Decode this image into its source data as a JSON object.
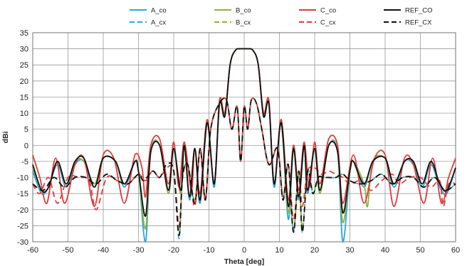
{
  "chart_data": {
    "type": "line",
    "xlabel": "Theta [deg]",
    "ylabel": "dBi",
    "xlim": [
      -60,
      60
    ],
    "ylim": [
      -30,
      35
    ],
    "x_ticks": [
      "-60",
      "-50",
      "-40",
      "-30",
      "-20",
      "-10",
      "0",
      "10",
      "20",
      "30",
      "40",
      "50",
      "60"
    ],
    "y_ticks": [
      "35",
      "30",
      "25",
      "20",
      "15",
      "10",
      "5",
      "0",
      "-5",
      "-10",
      "-15",
      "-20",
      "-25",
      "-30"
    ],
    "grid": true,
    "legend_position": "top",
    "series": [
      {
        "name": "A_co",
        "color": "#2aa8dc",
        "dash": "solid",
        "x": [
          -60,
          -57.5,
          -55.5,
          -53,
          -50.5,
          -48,
          -45.5,
          -42.5,
          -40,
          -36.5,
          -34,
          -31,
          -30,
          -28,
          -26.5,
          -24,
          -21.5,
          -20,
          -18,
          -17,
          -15.5,
          -14,
          -12.5,
          -10.5,
          -8.5,
          -7,
          -5.5,
          -4,
          -2.5,
          -1,
          0,
          1,
          2.5,
          4,
          5.5,
          7,
          8.5,
          10.5,
          12.5,
          14,
          15.5,
          17,
          18,
          20,
          21.5,
          24,
          26.5,
          28,
          30,
          31,
          34,
          36.5,
          40,
          42.5,
          45.5,
          48,
          50.5,
          53,
          55.5,
          57.5,
          60
        ],
        "y": [
          -8,
          -15,
          -13,
          -6,
          -13,
          -6,
          -5,
          -13,
          -4,
          -5,
          -13,
          -5,
          -8,
          -30,
          -2,
          0,
          -14,
          -1,
          -15,
          0,
          -17,
          -1,
          -18,
          7,
          -13,
          13,
          9,
          25,
          29.5,
          30,
          30,
          30,
          29.5,
          25,
          9,
          13,
          -13,
          7,
          -23,
          -1,
          -17,
          0,
          -15,
          -1,
          -14,
          0,
          -2,
          -30,
          -8,
          -5,
          -13,
          -5,
          -4,
          -13,
          -5,
          -6,
          -13,
          -6,
          -13,
          -15,
          -7
        ]
      },
      {
        "name": "A_cx",
        "color": "#2aa8dc",
        "dash": "8,5",
        "x": [
          -60,
          -57,
          -54,
          -51,
          -48,
          -45,
          -42,
          -39,
          -36,
          -33,
          -30,
          -28.5,
          -26,
          -24,
          -22,
          -20,
          -18.5,
          -17.5,
          -16,
          -14,
          -12.5,
          -11,
          -9.5,
          -7,
          -5,
          -3.5,
          -2,
          -1,
          0,
          1,
          2,
          3.5,
          5,
          7,
          9.5,
          11,
          12.5,
          14,
          15.5,
          16.5,
          18,
          19.5,
          21,
          22.5,
          24,
          26,
          28,
          30,
          33,
          36,
          39,
          42,
          45,
          48,
          51,
          54,
          57,
          60
        ],
        "y": [
          -12,
          -14,
          -10,
          -13,
          -10,
          -10,
          -12,
          -9,
          -11,
          -12,
          -9,
          -11,
          -8,
          -10,
          -6,
          -8,
          -29,
          -10,
          -6,
          -18,
          -1,
          -17,
          5,
          13,
          14,
          5,
          12,
          -5,
          12,
          5,
          14,
          13,
          5,
          -6,
          -1,
          -17,
          -6,
          -27,
          -8,
          -27,
          -8,
          -15,
          -10,
          -10,
          -10,
          -10,
          -9,
          -11,
          -12,
          -11,
          -9,
          -12,
          -10,
          -10,
          -13,
          -10,
          -14,
          -12
        ]
      },
      {
        "name": "B_co",
        "color": "#8db43e",
        "dash": "solid",
        "x": [
          -60,
          -57.5,
          -55.5,
          -53,
          -50.5,
          -48,
          -45.5,
          -42.5,
          -40,
          -36.5,
          -34,
          -31,
          -30,
          -28,
          -26.5,
          -24,
          -21.5,
          -20,
          -18,
          -17,
          -15.5,
          -14,
          -12.5,
          -10.5,
          -8.5,
          -7,
          -5.5,
          -4,
          -2.5,
          -1,
          0,
          1,
          2.5,
          4,
          5.5,
          7,
          8.5,
          10.5,
          12.5,
          14,
          15.5,
          17,
          18,
          20,
          21.5,
          24,
          26.5,
          28,
          30,
          31,
          34,
          35,
          36.5,
          40,
          42.5,
          45.5,
          48,
          50.5,
          53,
          55.5,
          57.5,
          60
        ],
        "y": [
          -7,
          -14,
          -13,
          -5,
          -12,
          -5,
          -5,
          -12,
          -4,
          -5,
          -12,
          -5,
          -8,
          -26,
          -2,
          0,
          -15,
          -1,
          -15,
          0,
          -16,
          -1,
          -17,
          7,
          -12,
          13,
          9,
          25,
          29.5,
          30,
          30,
          30,
          29.5,
          25,
          9,
          13,
          -12,
          7,
          -21,
          -1,
          -16,
          0,
          -14,
          -1,
          -15,
          0,
          -2,
          -24,
          -8,
          -5,
          -12,
          -19,
          -5,
          -4,
          -12,
          -5,
          -5,
          -12,
          -5,
          -12,
          -14,
          -7
        ]
      },
      {
        "name": "B_cx",
        "color": "#8db43e",
        "dash": "8,5",
        "x": [
          -60,
          -57,
          -54,
          -51,
          -48,
          -45,
          -42,
          -39,
          -36,
          -33,
          -30,
          -28.5,
          -26,
          -24,
          -22,
          -20,
          -18.5,
          -17.5,
          -16,
          -14,
          -12.5,
          -11,
          -9.5,
          -7,
          -5,
          -3.5,
          -2,
          -1,
          0,
          1,
          2,
          3.5,
          5,
          7,
          9.5,
          11,
          12.5,
          14,
          15.5,
          16.5,
          18,
          19.5,
          21,
          22.5,
          24,
          26,
          28,
          30,
          33,
          36,
          39,
          42,
          45,
          48,
          51,
          54,
          57,
          60
        ],
        "y": [
          -12,
          -14,
          -10,
          -13,
          -10,
          -10,
          -12,
          -9,
          -11,
          -12,
          -9,
          -11,
          -8,
          -10,
          -6,
          -8,
          -27,
          -10,
          -6,
          -17,
          -1,
          -16,
          5,
          13,
          14,
          5,
          12,
          -5,
          12,
          5,
          14,
          13,
          5,
          -6,
          -1,
          -16,
          -6,
          -26,
          -8,
          -26,
          -8,
          -14,
          -10,
          -10,
          -10,
          -10,
          -9,
          -11,
          -12,
          -11,
          -9,
          -12,
          -10,
          -10,
          -13,
          -10,
          -14,
          -12
        ]
      },
      {
        "name": "C_co",
        "color": "#e33b3b",
        "dash": "solid",
        "x": [
          -60,
          -58,
          -56,
          -53.5,
          -51,
          -48,
          -45.5,
          -42.5,
          -40,
          -37,
          -34,
          -31,
          -29,
          -28,
          -26.5,
          -24,
          -21.5,
          -20,
          -18.5,
          -17,
          -15,
          -14,
          -12.5,
          -10.5,
          -8.5,
          -7,
          -5.5,
          -4,
          -2.5,
          -1,
          0,
          1,
          2.5,
          4,
          5.5,
          7,
          8.5,
          10.5,
          12.5,
          14,
          15.5,
          17,
          18.5,
          20,
          21.5,
          24,
          26.5,
          28,
          31,
          34,
          37,
          40,
          42.5,
          45.5,
          48,
          51,
          53.5,
          56,
          58,
          60
        ],
        "y": [
          -3,
          -10,
          -18,
          -4,
          -18,
          -6,
          -4,
          -19,
          -3,
          -4,
          -18,
          -3,
          -7,
          -16,
          0,
          2,
          -12,
          1,
          -13,
          1,
          -14,
          -1,
          -15,
          8,
          -12,
          14,
          10,
          25,
          29.5,
          30,
          30,
          30,
          29.5,
          25,
          10,
          14,
          -12,
          8,
          -17,
          0,
          -14,
          1,
          -13,
          1,
          -12,
          2,
          0,
          -18,
          -3,
          -18,
          -4,
          -3,
          -19,
          -4,
          -6,
          -18,
          -4,
          -18,
          -10,
          -4
        ]
      },
      {
        "name": "C_cx",
        "color": "#e33b3b",
        "dash": "8,5",
        "x": [
          -60,
          -58,
          -55.5,
          -53,
          -50,
          -47,
          -44,
          -42,
          -39,
          -36,
          -33,
          -30,
          -28,
          -26,
          -24,
          -22,
          -20,
          -18.5,
          -17.5,
          -16,
          -14,
          -12.5,
          -11,
          -9.5,
          -7,
          -5,
          -3.5,
          -2,
          -1,
          0,
          1,
          2,
          3.5,
          5,
          7,
          9.5,
          11,
          12.5,
          14,
          15.5,
          16.5,
          18,
          20,
          22,
          24,
          26,
          28,
          30,
          33,
          36,
          39,
          42,
          44,
          47,
          50,
          53,
          55.5,
          56.5,
          58,
          60
        ],
        "y": [
          -12,
          -15,
          -10,
          -18,
          -10,
          -10,
          -11,
          -20,
          -10,
          -11,
          -12,
          -9,
          -11,
          -8,
          -10,
          -7,
          -8,
          -25,
          -10,
          -6,
          -19,
          -1,
          -17,
          5,
          13,
          14,
          5,
          12,
          -5,
          12,
          5,
          14,
          13,
          5,
          -6,
          -1,
          -16,
          -6,
          -23,
          -8,
          -19,
          -8,
          -7,
          -9,
          -8,
          -9,
          -10,
          -12,
          -11,
          -14,
          -11,
          -9,
          -12,
          -10,
          -10,
          -13,
          -11,
          -19,
          -12,
          -12
        ]
      },
      {
        "name": "REF_CO",
        "color": "#111111",
        "dash": "solid",
        "x": [
          -60,
          -57.5,
          -55.5,
          -53,
          -50.5,
          -48,
          -45.5,
          -42.5,
          -40,
          -36.5,
          -34,
          -31,
          -30,
          -28,
          -26.5,
          -24,
          -21.5,
          -20,
          -18,
          -17,
          -15.5,
          -14,
          -12.5,
          -10.5,
          -8.5,
          -7,
          -5.5,
          -4,
          -2.5,
          -1,
          0,
          1,
          2.5,
          4,
          5.5,
          7,
          8.5,
          10.5,
          12.5,
          14,
          15.5,
          17,
          18,
          20,
          21.5,
          24,
          26.5,
          28,
          30,
          31,
          34,
          36.5,
          40,
          42.5,
          45.5,
          48,
          50.5,
          53,
          55.5,
          57.5,
          60
        ],
        "y": [
          -6,
          -14,
          -13,
          -5,
          -12,
          -5,
          -4,
          -13,
          -4,
          -5,
          -12,
          -5,
          -8,
          -22,
          -2,
          0,
          -14,
          -1,
          -14,
          0,
          -16,
          -1,
          -17,
          7,
          -12,
          13,
          9,
          25,
          29.5,
          30,
          30,
          30,
          29.5,
          25,
          9,
          13,
          -12,
          7,
          -19,
          -1,
          -16,
          0,
          -14,
          -1,
          -14,
          0,
          -2,
          -21,
          -8,
          -5,
          -12,
          -5,
          -4,
          -12,
          -5,
          -5,
          -12,
          -5,
          -12,
          -14,
          -7
        ]
      },
      {
        "name": "REF_CX",
        "color": "#111111",
        "dash": "8,5",
        "x": [
          -60,
          -57,
          -54,
          -51,
          -48,
          -45,
          -42,
          -39,
          -36,
          -33,
          -30,
          -28.5,
          -26,
          -24,
          -22,
          -20,
          -18.5,
          -17.5,
          -16,
          -14,
          -12.5,
          -11,
          -9.5,
          -7,
          -5,
          -3.5,
          -2,
          -1,
          0,
          1,
          2,
          3.5,
          5,
          7,
          9.5,
          11,
          12.5,
          14,
          15.5,
          16.5,
          18,
          19.5,
          21,
          22.5,
          24,
          26,
          28,
          30,
          33,
          36,
          39,
          42,
          45,
          48,
          51,
          54,
          57,
          60
        ],
        "y": [
          -12,
          -14,
          -10,
          -13,
          -10,
          -10,
          -12,
          -9,
          -11,
          -12,
          -9,
          -11,
          -8,
          -10,
          -6,
          -8,
          -28,
          -10,
          -6,
          -18,
          -1,
          -17,
          5,
          13,
          14,
          5,
          12,
          -5,
          12,
          5,
          14,
          13,
          5,
          -6,
          -1,
          -17,
          -6,
          -27,
          -8,
          -27,
          -8,
          -15,
          -10,
          -10,
          -10,
          -10,
          -9,
          -11,
          -12,
          -11,
          -9,
          -12,
          -10,
          -10,
          -13,
          -10,
          -14,
          -12
        ]
      }
    ]
  }
}
